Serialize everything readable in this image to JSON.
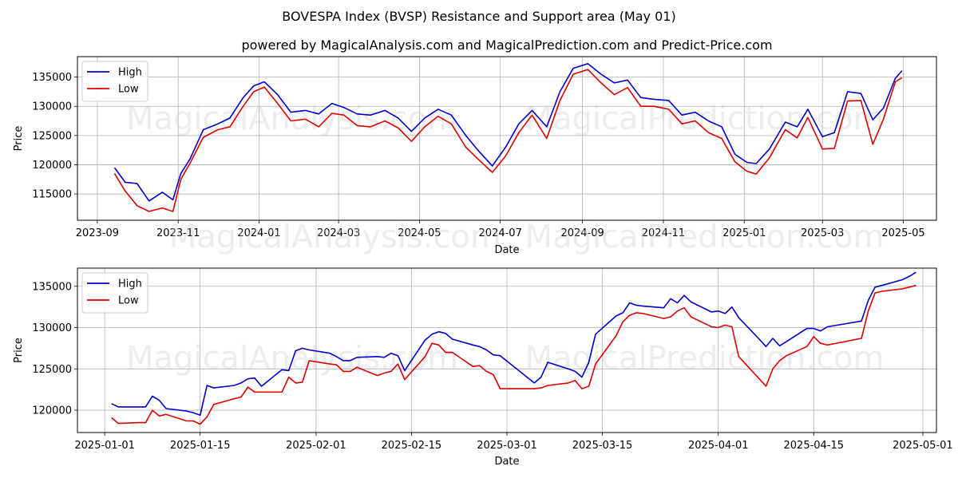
{
  "figure": {
    "title": "BOVESPA Index (BVSP) Resistance and Support area (May 01)",
    "subtitle": "powered by MagicalAnalysis.com and MagicalPrediction.com and Predict-Price.com"
  },
  "watermarks": [
    "MagicalAnalysis.com",
    "MagicalPrediction.com"
  ],
  "colors": {
    "high": "#0000cc",
    "low": "#dd0000",
    "grid": "#b0b0b0"
  },
  "chart_data": [
    {
      "type": "line",
      "xlabel": "Date",
      "ylabel": "Price",
      "grid": true,
      "legend": "top-left",
      "xlim": [
        "2023-08-17",
        "2025-05-26"
      ],
      "ylim": [
        110500,
        138500
      ],
      "yticks": [
        115000,
        120000,
        125000,
        130000,
        135000
      ],
      "ytick_labels": [
        "115000",
        "120000",
        "125000",
        "130000",
        "135000"
      ],
      "xticks": [
        "2023-09-01",
        "2023-11-01",
        "2024-01-01",
        "2024-03-01",
        "2024-05-01",
        "2024-07-01",
        "2024-09-01",
        "2024-11-01",
        "2025-01-01",
        "2025-03-01",
        "2025-05-01"
      ],
      "xtick_labels": [
        "2023-09",
        "2023-11",
        "2024-01",
        "2024-03",
        "2024-05",
        "2024-07",
        "2024-09",
        "2024-11",
        "2025-01",
        "2025-03",
        "2025-05"
      ],
      "dates": [
        "2023-09-14",
        "2023-09-22",
        "2023-10-01",
        "2023-10-10",
        "2023-10-20",
        "2023-10-28",
        "2023-11-03",
        "2023-11-10",
        "2023-11-20",
        "2023-12-01",
        "2023-12-10",
        "2023-12-20",
        "2023-12-28",
        "2024-01-05",
        "2024-01-15",
        "2024-01-25",
        "2024-02-05",
        "2024-02-15",
        "2024-02-25",
        "2024-03-05",
        "2024-03-15",
        "2024-03-25",
        "2024-04-05",
        "2024-04-15",
        "2024-04-25",
        "2024-05-05",
        "2024-05-15",
        "2024-05-25",
        "2024-06-05",
        "2024-06-14",
        "2024-06-25",
        "2024-07-05",
        "2024-07-15",
        "2024-07-25",
        "2024-08-05",
        "2024-08-15",
        "2024-08-25",
        "2024-09-05",
        "2024-09-15",
        "2024-09-25",
        "2024-10-05",
        "2024-10-15",
        "2024-10-25",
        "2024-11-05",
        "2024-11-15",
        "2024-11-25",
        "2024-12-05",
        "2024-12-15",
        "2024-12-25",
        "2025-01-03",
        "2025-01-10",
        "2025-01-20",
        "2025-02-01",
        "2025-02-10",
        "2025-02-18",
        "2025-03-01",
        "2025-03-10",
        "2025-03-20",
        "2025-03-30",
        "2025-04-08",
        "2025-04-16",
        "2025-04-25",
        "2025-04-30"
      ],
      "series": [
        {
          "name": "High",
          "values": [
            119500,
            117000,
            116800,
            113800,
            115300,
            114000,
            118500,
            121000,
            126000,
            127000,
            128000,
            131500,
            133500,
            134200,
            132000,
            129000,
            129300,
            128700,
            130500,
            129800,
            128700,
            128500,
            129300,
            128000,
            125700,
            128000,
            129500,
            128500,
            125000,
            122500,
            119800,
            123000,
            127000,
            129300,
            126500,
            132500,
            136500,
            137300,
            135500,
            134000,
            134500,
            131500,
            131200,
            131000,
            128500,
            129000,
            127500,
            126500,
            121800,
            120400,
            120200,
            122700,
            127300,
            126500,
            129500,
            124800,
            125500,
            132500,
            132200,
            127700,
            129700,
            134800,
            136100
          ]
        },
        {
          "name": "Low",
          "values": [
            118500,
            115500,
            113000,
            112000,
            112600,
            112000,
            117500,
            120300,
            124700,
            126000,
            126500,
            130000,
            132500,
            133300,
            130500,
            127500,
            127800,
            126500,
            128800,
            128500,
            126700,
            126500,
            127500,
            126300,
            124000,
            126500,
            128300,
            127000,
            123000,
            121000,
            118700,
            121500,
            125500,
            128500,
            124500,
            131000,
            135500,
            136300,
            134000,
            132000,
            133200,
            130000,
            130000,
            129500,
            127000,
            127500,
            125500,
            124500,
            120500,
            118900,
            118400,
            121200,
            126000,
            124600,
            128100,
            122700,
            122800,
            130900,
            131000,
            123500,
            127800,
            134200,
            134900
          ]
        }
      ]
    },
    {
      "type": "line",
      "xlabel": "Date",
      "ylabel": "Price",
      "grid": true,
      "legend": "top-left",
      "xlim": [
        "2024-12-28",
        "2025-05-03"
      ],
      "ylim": [
        117300,
        137200
      ],
      "yticks": [
        120000,
        125000,
        130000,
        135000
      ],
      "ytick_labels": [
        "120000",
        "125000",
        "130000",
        "135000"
      ],
      "xticks": [
        "2025-01-01",
        "2025-01-15",
        "2025-02-01",
        "2025-02-15",
        "2025-03-01",
        "2025-03-15",
        "2025-04-01",
        "2025-04-15",
        "2025-05-01"
      ],
      "xtick_labels": [
        "2025-01-01",
        "2025-01-15",
        "2025-02-01",
        "2025-02-15",
        "2025-03-01",
        "2025-03-15",
        "2025-04-01",
        "2025-04-15",
        "2025-05-01"
      ],
      "dates": [
        "2025-01-02",
        "2025-01-03",
        "2025-01-06",
        "2025-01-07",
        "2025-01-08",
        "2025-01-09",
        "2025-01-10",
        "2025-01-13",
        "2025-01-14",
        "2025-01-15",
        "2025-01-16",
        "2025-01-17",
        "2025-01-20",
        "2025-01-21",
        "2025-01-22",
        "2025-01-23",
        "2025-01-24",
        "2025-01-27",
        "2025-01-28",
        "2025-01-29",
        "2025-01-30",
        "2025-01-31",
        "2025-02-03",
        "2025-02-04",
        "2025-02-05",
        "2025-02-06",
        "2025-02-07",
        "2025-02-10",
        "2025-02-11",
        "2025-02-12",
        "2025-02-13",
        "2025-02-14",
        "2025-02-17",
        "2025-02-18",
        "2025-02-19",
        "2025-02-20",
        "2025-02-21",
        "2025-02-24",
        "2025-02-25",
        "2025-02-26",
        "2025-02-27",
        "2025-02-28",
        "2025-03-05",
        "2025-03-06",
        "2025-03-07",
        "2025-03-10",
        "2025-03-11",
        "2025-03-12",
        "2025-03-13",
        "2025-03-14",
        "2025-03-17",
        "2025-03-18",
        "2025-03-19",
        "2025-03-20",
        "2025-03-21",
        "2025-03-24",
        "2025-03-25",
        "2025-03-26",
        "2025-03-27",
        "2025-03-28",
        "2025-03-31",
        "2025-04-01",
        "2025-04-02",
        "2025-04-03",
        "2025-04-04",
        "2025-04-07",
        "2025-04-08",
        "2025-04-09",
        "2025-04-10",
        "2025-04-11",
        "2025-04-14",
        "2025-04-15",
        "2025-04-16",
        "2025-04-17",
        "2025-04-22",
        "2025-04-23",
        "2025-04-24",
        "2025-04-25",
        "2025-04-28",
        "2025-04-29",
        "2025-04-30"
      ],
      "series": [
        {
          "name": "High",
          "values": [
            120800,
            120400,
            120400,
            120400,
            121700,
            121200,
            120200,
            119900,
            119700,
            119400,
            123000,
            122700,
            123000,
            123300,
            123800,
            123900,
            122900,
            124900,
            124800,
            127200,
            127500,
            127300,
            126900,
            126500,
            126000,
            126000,
            126400,
            126500,
            126400,
            126900,
            126600,
            124800,
            128500,
            129200,
            129500,
            129300,
            128600,
            127900,
            127700,
            127300,
            126700,
            126600,
            123300,
            124000,
            125800,
            125000,
            124700,
            124000,
            125800,
            129200,
            131400,
            131800,
            133000,
            132700,
            132600,
            132400,
            133500,
            133000,
            133900,
            133100,
            131900,
            132000,
            131700,
            132500,
            131200,
            128600,
            127700,
            128700,
            127800,
            128300,
            129900,
            129900,
            129600,
            130100,
            130800,
            133300,
            134900,
            135100,
            135800,
            136200,
            136700
          ]
        },
        {
          "name": "Low",
          "values": [
            119100,
            118400,
            118500,
            118500,
            120000,
            119300,
            119500,
            118700,
            118700,
            118300,
            119200,
            120700,
            121400,
            121600,
            122800,
            122200,
            122200,
            122200,
            124000,
            123300,
            123400,
            126000,
            125600,
            125500,
            124700,
            124700,
            125200,
            124200,
            124500,
            124700,
            125600,
            123700,
            126500,
            128100,
            127900,
            127000,
            127000,
            125300,
            125400,
            124700,
            124300,
            122600,
            122600,
            122700,
            123000,
            123300,
            123600,
            122600,
            122900,
            125600,
            129000,
            130700,
            131500,
            131800,
            131700,
            131100,
            131300,
            132000,
            132400,
            131300,
            130100,
            130000,
            130300,
            130100,
            126500,
            123800,
            122900,
            125000,
            126000,
            126600,
            127700,
            128900,
            128100,
            127900,
            128700,
            132000,
            134200,
            134400,
            134700,
            134900,
            135100
          ]
        }
      ]
    }
  ]
}
